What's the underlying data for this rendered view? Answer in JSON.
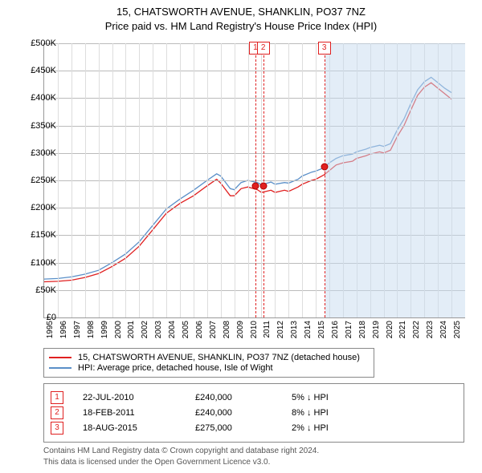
{
  "title_line1": "15, CHATSWORTH AVENUE, SHANKLIN, PO37 7NZ",
  "title_line2": "Price paid vs. HM Land Registry's House Price Index (HPI)",
  "chart": {
    "type": "line",
    "x_start": 1995,
    "x_end": 2026,
    "y_min": 0,
    "y_max": 500000,
    "y_step": 50000,
    "y_prefix": "£",
    "y_suffix": "K",
    "background_color": "#ffffff",
    "grid_h_color": "#bbbbbb",
    "grid_v_color": "#dddddd",
    "axis_color": "#999999",
    "shade_color": "rgba(200,220,240,0.5)",
    "shade_start": 2015.7,
    "shade_end": 2026,
    "red_line_color": "#e02020",
    "blue_line_color": "#5a8fc8",
    "line_width": 1.3,
    "marker_line_dash": "3,3",
    "dot_fill": "#e02020",
    "dot_border": "#b00000",
    "x_ticks": [
      "1995",
      "1996",
      "1997",
      "1998",
      "1999",
      "2000",
      "2001",
      "2002",
      "2003",
      "2004",
      "2005",
      "2006",
      "2007",
      "2008",
      "2009",
      "2010",
      "2011",
      "2012",
      "2013",
      "2014",
      "2015",
      "2016",
      "2017",
      "2018",
      "2019",
      "2020",
      "2021",
      "2022",
      "2023",
      "2024",
      "2025"
    ],
    "y_ticks": [
      "£0",
      "£50K",
      "£100K",
      "£150K",
      "£200K",
      "£250K",
      "£300K",
      "£350K",
      "£400K",
      "£450K",
      "£500K"
    ],
    "markers": [
      {
        "n": "1",
        "x": 2010.55,
        "y": 240000
      },
      {
        "n": "2",
        "x": 2011.13,
        "y": 240000
      },
      {
        "n": "3",
        "x": 2015.63,
        "y": 275000
      }
    ],
    "series_red": [
      [
        1995,
        65000
      ],
      [
        1996,
        66000
      ],
      [
        1997,
        68000
      ],
      [
        1998,
        73000
      ],
      [
        1999,
        80000
      ],
      [
        2000,
        93000
      ],
      [
        2001,
        108000
      ],
      [
        2002,
        130000
      ],
      [
        2003,
        160000
      ],
      [
        2004,
        190000
      ],
      [
        2005,
        208000
      ],
      [
        2006,
        222000
      ],
      [
        2007,
        240000
      ],
      [
        2007.7,
        252000
      ],
      [
        2008,
        245000
      ],
      [
        2008.7,
        222000
      ],
      [
        2009,
        222000
      ],
      [
        2009.5,
        235000
      ],
      [
        2010,
        238000
      ],
      [
        2010.7,
        233000
      ],
      [
        2011,
        228000
      ],
      [
        2011.7,
        232000
      ],
      [
        2012,
        228000
      ],
      [
        2012.7,
        232000
      ],
      [
        2013,
        230000
      ],
      [
        2013.7,
        238000
      ],
      [
        2014,
        243000
      ],
      [
        2014.7,
        250000
      ],
      [
        2015,
        252000
      ],
      [
        2015.6,
        260000
      ],
      [
        2016,
        268000
      ],
      [
        2016.5,
        278000
      ],
      [
        2017,
        282000
      ],
      [
        2017.7,
        285000
      ],
      [
        2018,
        290000
      ],
      [
        2018.7,
        295000
      ],
      [
        2019,
        298000
      ],
      [
        2019.7,
        302000
      ],
      [
        2020,
        300000
      ],
      [
        2020.5,
        305000
      ],
      [
        2021,
        330000
      ],
      [
        2021.5,
        350000
      ],
      [
        2022,
        378000
      ],
      [
        2022.5,
        405000
      ],
      [
        2023,
        420000
      ],
      [
        2023.5,
        428000
      ],
      [
        2024,
        418000
      ],
      [
        2024.5,
        408000
      ],
      [
        2025,
        398000
      ]
    ],
    "series_blue": [
      [
        1995,
        70000
      ],
      [
        1996,
        71000
      ],
      [
        1997,
        74000
      ],
      [
        1998,
        79000
      ],
      [
        1999,
        86000
      ],
      [
        2000,
        100000
      ],
      [
        2001,
        116000
      ],
      [
        2002,
        138000
      ],
      [
        2003,
        168000
      ],
      [
        2004,
        198000
      ],
      [
        2005,
        216000
      ],
      [
        2006,
        232000
      ],
      [
        2007,
        250000
      ],
      [
        2007.7,
        262000
      ],
      [
        2008,
        258000
      ],
      [
        2008.7,
        235000
      ],
      [
        2009,
        233000
      ],
      [
        2009.5,
        246000
      ],
      [
        2010,
        250000
      ],
      [
        2010.7,
        246000
      ],
      [
        2011,
        242000
      ],
      [
        2011.7,
        247000
      ],
      [
        2012,
        243000
      ],
      [
        2012.7,
        246000
      ],
      [
        2013,
        245000
      ],
      [
        2013.7,
        252000
      ],
      [
        2014,
        258000
      ],
      [
        2014.7,
        265000
      ],
      [
        2015,
        267000
      ],
      [
        2015.6,
        273000
      ],
      [
        2016,
        282000
      ],
      [
        2016.5,
        290000
      ],
      [
        2017,
        295000
      ],
      [
        2017.7,
        298000
      ],
      [
        2018,
        302000
      ],
      [
        2018.7,
        307000
      ],
      [
        2019,
        310000
      ],
      [
        2019.7,
        314000
      ],
      [
        2020,
        312000
      ],
      [
        2020.5,
        317000
      ],
      [
        2021,
        342000
      ],
      [
        2021.5,
        362000
      ],
      [
        2022,
        390000
      ],
      [
        2022.5,
        415000
      ],
      [
        2023,
        430000
      ],
      [
        2023.5,
        438000
      ],
      [
        2024,
        428000
      ],
      [
        2024.5,
        418000
      ],
      [
        2025,
        410000
      ]
    ]
  },
  "legend": {
    "red_label": "15, CHATSWORTH AVENUE, SHANKLIN, PO37 7NZ (detached house)",
    "blue_label": "HPI: Average price, detached house, Isle of Wight",
    "red_color": "#e02020",
    "blue_color": "#5a8fc8"
  },
  "sales": [
    {
      "n": "1",
      "date": "22-JUL-2010",
      "price": "£240,000",
      "diff": "5%  ↓  HPI"
    },
    {
      "n": "2",
      "date": "18-FEB-2011",
      "price": "£240,000",
      "diff": "8%  ↓  HPI"
    },
    {
      "n": "3",
      "date": "18-AUG-2015",
      "price": "£275,000",
      "diff": "2%  ↓  HPI"
    }
  ],
  "attribution_line1": "Contains HM Land Registry data © Crown copyright and database right 2024.",
  "attribution_line2": "This data is licensed under the Open Government Licence v3.0."
}
